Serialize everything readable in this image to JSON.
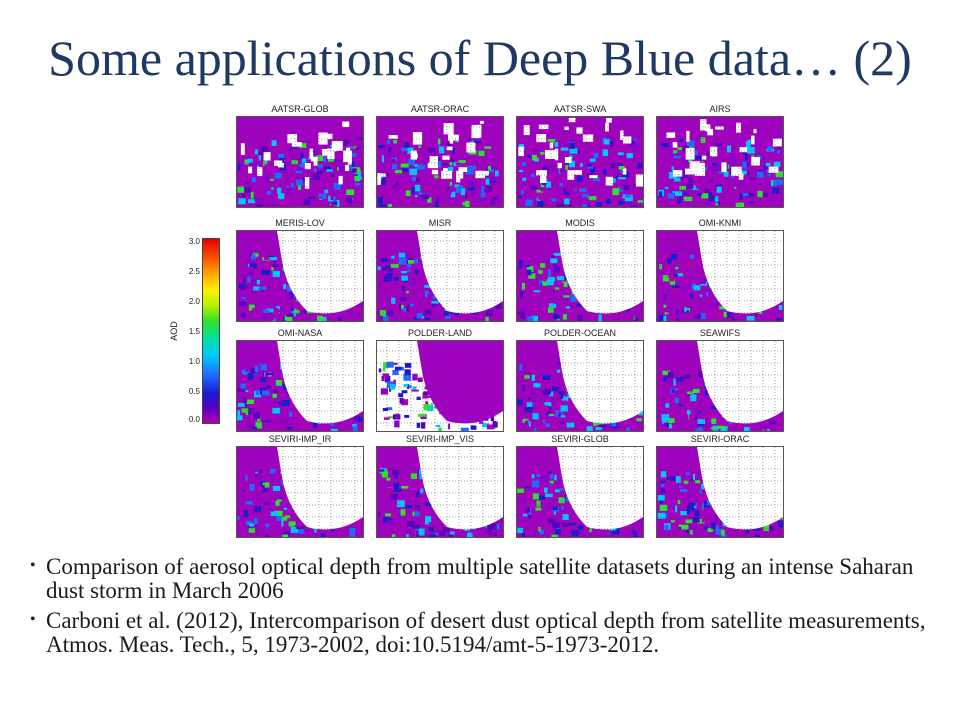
{
  "slide": {
    "title": "Some applications of Deep Blue data… (2)"
  },
  "figure": {
    "colorbar": {
      "label": "AOD",
      "ticks": [
        "3.0",
        "2.5",
        "2.0",
        "1.5",
        "1.0",
        "0.5",
        "0.0"
      ]
    },
    "panels": [
      {
        "label": "AATSR-GLOB"
      },
      {
        "label": "AATSR-ORAC"
      },
      {
        "label": "AATSR-SWA"
      },
      {
        "label": "AIRS"
      },
      {
        "label": "MERIS-LOV"
      },
      {
        "label": "MISR"
      },
      {
        "label": "MODIS"
      },
      {
        "label": "OMI-KNMI"
      },
      {
        "label": "OMI-NASA"
      },
      {
        "label": "POLDER-LAND"
      },
      {
        "label": "POLDER-OCEAN"
      },
      {
        "label": "SEAWIFS"
      },
      {
        "label": "SEVIRI-IMP_IR"
      },
      {
        "label": "SEVIRI-IMP_VIS"
      },
      {
        "label": "SEVIRI-GLOB"
      },
      {
        "label": "SEVIRI-ORAC"
      }
    ]
  },
  "bullets": [
    "Comparison of aerosol optical depth from multiple satellite datasets during an intense Saharan dust storm in March 2006",
    "Carboni et al. (2012), Intercomparison of desert dust optical depth from satellite measurements, Atmos. Meas. Tech., 5, 1973-2002, doi:10.5194/amt-5-1973-2012."
  ],
  "colors": {
    "title": "#1f3864",
    "low_aod": "#b000b0",
    "mid_aod": "#1e6cff",
    "high_aod": "#30e030"
  }
}
